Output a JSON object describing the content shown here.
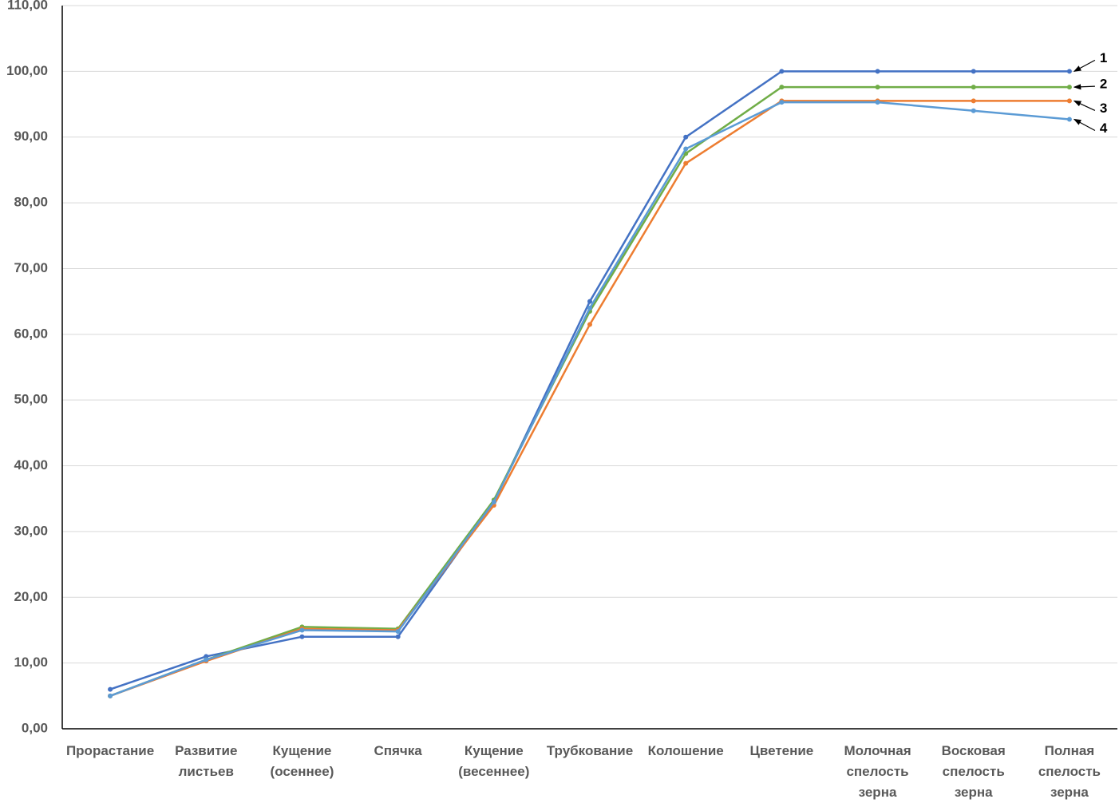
{
  "chart_data": {
    "type": "line",
    "categories": [
      "Прорастание",
      "Развитие листьев",
      "Кущение (осеннее)",
      "Спячка",
      "Кущение (весеннее)",
      "Трубкование",
      "Колошение",
      "Цветение",
      "Молочная спелость зерна",
      "Восковая спелость зерна",
      "Полная спелость зерна"
    ],
    "series": [
      {
        "name": "1",
        "color": "#4472c4",
        "values": [
          6,
          11,
          14,
          14,
          34.5,
          65,
          90,
          100,
          100,
          100,
          100
        ]
      },
      {
        "name": "2",
        "color": "#70ad47",
        "values": [
          5,
          10.5,
          15.5,
          15.2,
          34.8,
          63.5,
          87.5,
          97.6,
          97.6,
          97.6,
          97.6
        ]
      },
      {
        "name": "3",
        "color": "#ed7d31",
        "values": [
          5,
          10.3,
          15.2,
          15,
          34,
          61.5,
          86,
          95.5,
          95.5,
          95.5,
          95.5
        ]
      },
      {
        "name": "4",
        "color": "#5b9bd5",
        "values": [
          5,
          10.5,
          15,
          14.8,
          34.5,
          64,
          88.2,
          95.3,
          95.3,
          94,
          92.7
        ]
      }
    ],
    "ylim": [
      0,
      110
    ],
    "yticks": [
      {
        "value": 0,
        "label": "0,00"
      },
      {
        "value": 10,
        "label": "10,00"
      },
      {
        "value": 20,
        "label": "20,00"
      },
      {
        "value": 30,
        "label": "30,00"
      },
      {
        "value": 40,
        "label": "40,00"
      },
      {
        "value": 50,
        "label": "50,00"
      },
      {
        "value": 60,
        "label": "60,00"
      },
      {
        "value": 70,
        "label": "70,00"
      },
      {
        "value": 80,
        "label": "80,00"
      },
      {
        "value": 90,
        "label": "90,00"
      },
      {
        "value": 100,
        "label": "100,00"
      },
      {
        "value": 110,
        "label": "110,00"
      }
    ],
    "grid": true
  }
}
